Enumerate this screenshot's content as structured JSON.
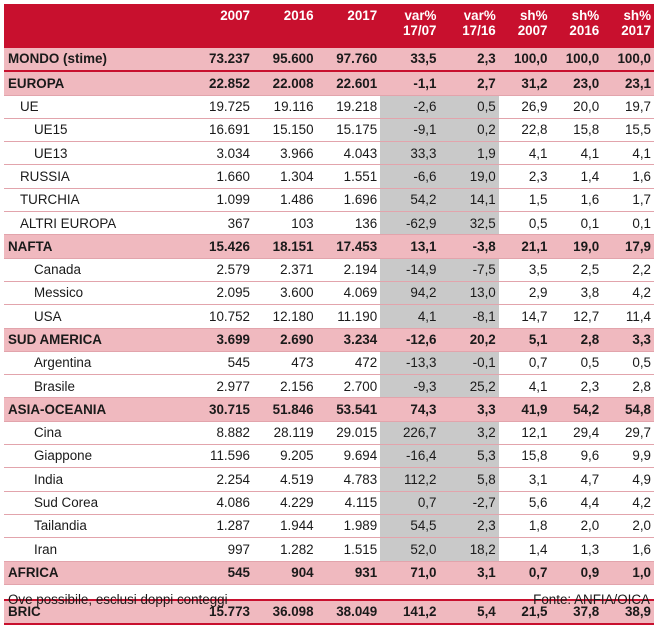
{
  "headers": [
    "",
    "2007",
    "2016",
    "2017",
    "var%\n17/07",
    "var%\n17/16",
    "sh%\n2007",
    "sh%\n2016",
    "sh%\n2017"
  ],
  "rows": [
    {
      "type": "world",
      "name": "MONDO (stime)",
      "v": [
        "73.237",
        "95.600",
        "97.760",
        "33,5",
        "2,3",
        "100,0",
        "100,0",
        "100,0"
      ]
    },
    {
      "type": "group",
      "name": "EUROPA",
      "v": [
        "22.852",
        "22.008",
        "22.601",
        "-1,1",
        "2,7",
        "31,2",
        "23,0",
        "23,1"
      ]
    },
    {
      "type": "sub",
      "name": "UE",
      "v": [
        "19.725",
        "19.116",
        "19.218",
        "-2,6",
        "0,5",
        "26,9",
        "20,0",
        "19,7"
      ]
    },
    {
      "type": "sub2",
      "name": "UE15",
      "v": [
        "16.691",
        "15.150",
        "15.175",
        "-9,1",
        "0,2",
        "22,8",
        "15,8",
        "15,5"
      ]
    },
    {
      "type": "sub2",
      "name": "UE13",
      "v": [
        "3.034",
        "3.966",
        "4.043",
        "33,3",
        "1,9",
        "4,1",
        "4,1",
        "4,1"
      ]
    },
    {
      "type": "sub",
      "name": "RUSSIA",
      "v": [
        "1.660",
        "1.304",
        "1.551",
        "-6,6",
        "19,0",
        "2,3",
        "1,4",
        "1,6"
      ]
    },
    {
      "type": "sub",
      "name": "TURCHIA",
      "v": [
        "1.099",
        "1.486",
        "1.696",
        "54,2",
        "14,1",
        "1,5",
        "1,6",
        "1,7"
      ]
    },
    {
      "type": "sub",
      "name": "ALTRI EUROPA",
      "v": [
        "367",
        "103",
        "136",
        "-62,9",
        "32,5",
        "0,5",
        "0,1",
        "0,1"
      ]
    },
    {
      "type": "group",
      "name": "NAFTA",
      "v": [
        "15.426",
        "18.151",
        "17.453",
        "13,1",
        "-3,8",
        "21,1",
        "19,0",
        "17,9"
      ]
    },
    {
      "type": "sub2",
      "name": "Canada",
      "v": [
        "2.579",
        "2.371",
        "2.194",
        "-14,9",
        "-7,5",
        "3,5",
        "2,5",
        "2,2"
      ]
    },
    {
      "type": "sub2",
      "name": "Messico",
      "v": [
        "2.095",
        "3.600",
        "4.069",
        "94,2",
        "13,0",
        "2,9",
        "3,8",
        "4,2"
      ]
    },
    {
      "type": "sub2",
      "name": "USA",
      "v": [
        "10.752",
        "12.180",
        "11.190",
        "4,1",
        "-8,1",
        "14,7",
        "12,7",
        "11,4"
      ]
    },
    {
      "type": "group",
      "name": "SUD AMERICA",
      "v": [
        "3.699",
        "2.690",
        "3.234",
        "-12,6",
        "20,2",
        "5,1",
        "2,8",
        "3,3"
      ]
    },
    {
      "type": "sub2",
      "name": "Argentina",
      "v": [
        "545",
        "473",
        "472",
        "-13,3",
        "-0,1",
        "0,7",
        "0,5",
        "0,5"
      ]
    },
    {
      "type": "sub2",
      "name": "Brasile",
      "v": [
        "2.977",
        "2.156",
        "2.700",
        "-9,3",
        "25,2",
        "4,1",
        "2,3",
        "2,8"
      ]
    },
    {
      "type": "group",
      "name": "ASIA-OCEANIA",
      "v": [
        "30.715",
        "51.846",
        "53.541",
        "74,3",
        "3,3",
        "41,9",
        "54,2",
        "54,8"
      ]
    },
    {
      "type": "sub2",
      "name": "Cina",
      "v": [
        "8.882",
        "28.119",
        "29.015",
        "226,7",
        "3,2",
        "12,1",
        "29,4",
        "29,7"
      ]
    },
    {
      "type": "sub2",
      "name": "Giappone",
      "v": [
        "11.596",
        "9.205",
        "9.694",
        "-16,4",
        "5,3",
        "15,8",
        "9,6",
        "9,9"
      ]
    },
    {
      "type": "sub2",
      "name": "India",
      "v": [
        "2.254",
        "4.519",
        "4.783",
        "112,2",
        "5,8",
        "3,1",
        "4,7",
        "4,9"
      ]
    },
    {
      "type": "sub2",
      "name": "Sud Corea",
      "v": [
        "4.086",
        "4.229",
        "4.115",
        "0,7",
        "-2,7",
        "5,6",
        "4,4",
        "4,2"
      ]
    },
    {
      "type": "sub2",
      "name": "Tailandia",
      "v": [
        "1.287",
        "1.944",
        "1.989",
        "54,5",
        "2,3",
        "1,8",
        "2,0",
        "2,0"
      ]
    },
    {
      "type": "sub2",
      "name": "Iran",
      "v": [
        "997",
        "1.282",
        "1.515",
        "52,0",
        "18,2",
        "1,4",
        "1,3",
        "1,6"
      ]
    },
    {
      "type": "group",
      "name": "AFRICA",
      "v": [
        "545",
        "904",
        "931",
        "71,0",
        "3,1",
        "0,7",
        "0,9",
        "1,0"
      ]
    }
  ],
  "bric": {
    "name": "BRIC",
    "v": [
      "15.773",
      "36.098",
      "38.049",
      "141,2",
      "5,4",
      "21,5",
      "37,8",
      "38,9"
    ]
  },
  "footer": {
    "note": "Ove possibile, esclusi doppi conteggi",
    "source": "Fonte: ANFIA/OICA"
  }
}
